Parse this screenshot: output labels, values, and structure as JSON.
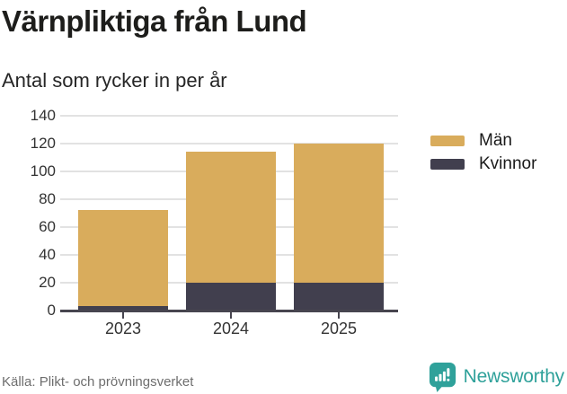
{
  "header": {
    "title": "Värnpliktiga från Lund",
    "subtitle": "Antal som rycker in per år"
  },
  "chart_data": {
    "type": "bar",
    "stacked": true,
    "title": "Värnpliktiga från Lund",
    "subtitle": "Antal som rycker in per år",
    "categories": [
      "2023",
      "2024",
      "2025"
    ],
    "series": [
      {
        "name": "Män",
        "color": "#d9ac5c",
        "values": [
          69,
          94,
          100
        ]
      },
      {
        "name": "Kvinnor",
        "color": "#413f4e",
        "values": [
          3,
          20,
          20
        ]
      }
    ],
    "stack_bottom_to_top": [
      "Kvinnor",
      "Män"
    ],
    "totals": [
      72,
      114,
      120
    ],
    "ylim": [
      0,
      140
    ],
    "yticks": [
      0,
      20,
      40,
      60,
      80,
      100,
      120,
      140
    ],
    "grid": true,
    "legend_position": "right"
  },
  "footer": {
    "source": "Källa: Plikt- och prövningsverket",
    "brand": "Newsworthy",
    "brand_logo_icon": "newsworthy-bar-chart-speech-bubble-icon",
    "brand_color": "#2fa19a"
  },
  "colors": {
    "axis_line": "#47454f",
    "gridline": "#e2e2e2",
    "tick_label": "#333333",
    "title_text": "#1d1d1b",
    "source_text": "#6e6e6e"
  }
}
